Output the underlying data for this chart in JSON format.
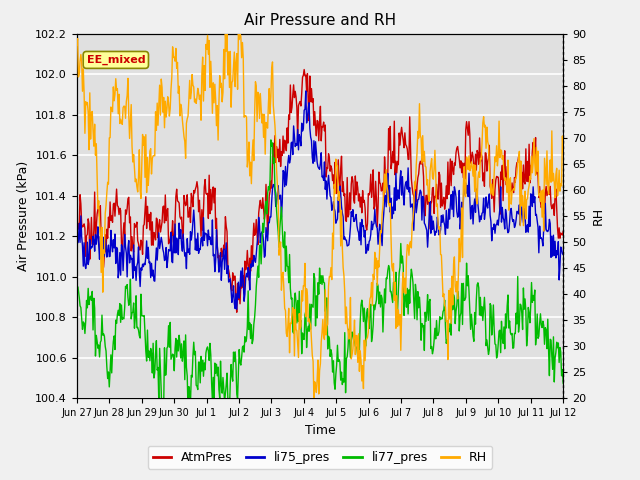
{
  "title": "Air Pressure and RH",
  "xlabel": "Time",
  "ylabel_left": "Air Pressure (kPa)",
  "ylabel_right": "RH",
  "annotation": "EE_mixed",
  "ylim_left": [
    100.4,
    102.2
  ],
  "ylim_right": [
    20,
    90
  ],
  "yticks_left": [
    100.4,
    100.6,
    100.8,
    101.0,
    101.2,
    101.4,
    101.6,
    101.8,
    102.0,
    102.2
  ],
  "yticks_right": [
    20,
    25,
    30,
    35,
    40,
    45,
    50,
    55,
    60,
    65,
    70,
    75,
    80,
    85,
    90
  ],
  "colors": {
    "AtmPres": "#cc0000",
    "li75_pres": "#0000cc",
    "li77_pres": "#00bb00",
    "RH": "#ffaa00"
  },
  "bg_color": "#e0e0e0",
  "grid_color": "#ffffff",
  "tick_labels": [
    "Jun 27",
    "Jun 28",
    "Jun 29",
    "Jun 30",
    "Jul 1",
    "Jul 2",
    "Jul 3",
    "Jul 4",
    "Jul 5",
    "Jul 6",
    "Jul 7",
    "Jul 8",
    "Jul 9",
    "Jul 10",
    "Jul 11",
    "Jul 12"
  ],
  "legend_entries": [
    "AtmPres",
    "li75_pres",
    "li77_pres",
    "RH"
  ],
  "annotation_facecolor": "#ffff99",
  "annotation_edgecolor": "#888800",
  "annotation_textcolor": "#cc0000"
}
